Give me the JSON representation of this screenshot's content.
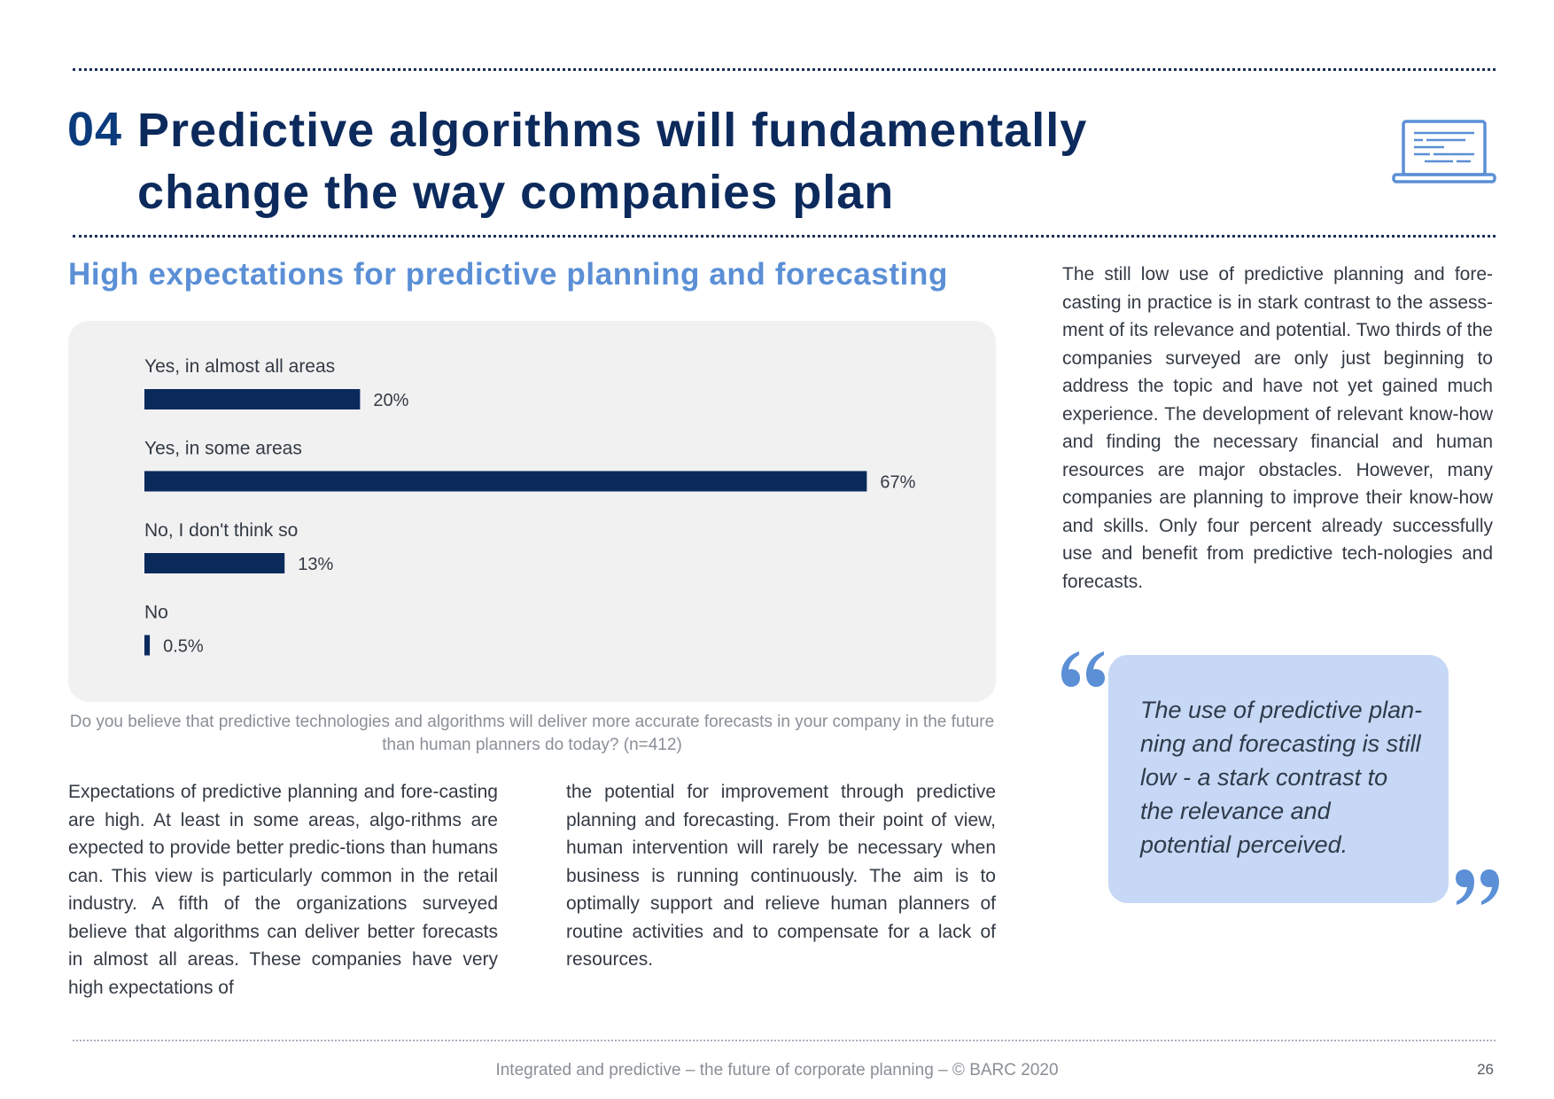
{
  "header": {
    "section_number": "04",
    "title": "Predictive algorithms will fundamentally change the way companies plan",
    "icon": "laptop-icon"
  },
  "subheading": "High expectations for predictive planning and forecasting",
  "chart_data": {
    "type": "bar",
    "orientation": "horizontal",
    "categories": [
      "Yes, in almost all areas",
      "Yes, in some areas",
      "No, I don't think so",
      "No"
    ],
    "values": [
      20,
      67,
      13,
      0.5
    ],
    "value_labels": [
      "20%",
      "67%",
      "13%",
      "0.5%"
    ],
    "unit": "%",
    "xlim": [
      0,
      100
    ],
    "bar_color": "#0b2a5c",
    "grid": false,
    "caption": "Do you believe that predictive technologies and algorithms will deliver more accurate forecasts in your company in the future than human planners do today? (n=412)"
  },
  "body": {
    "left_column": "Expectations of predictive planning and fore-casting are high. At least in some areas, algo-rithms are expected to provide better predic-tions than humans can. This view is particularly common in the retail industry. A fifth of the organizations surveyed believe that algorithms can deliver better forecasts in almost all areas. These companies have very high expectations of",
    "middle_column": "the potential for improvement through predictive planning and forecasting. From their point of view, human intervention will rarely be necessary when business is running continuously. The aim is to optimally support and relieve human planners of routine activities and to compensate for a lack of resources.",
    "right_column": "The still low use of predictive planning and fore-casting in practice is in stark contrast to the assess-ment of its relevance and potential. Two thirds of the companies surveyed are only just beginning to address the topic and have not yet gained much experience. The development of relevant know-how and finding the necessary financial and human resources are major obstacles. However, many companies are planning to improve their know-how and skills. Only four percent already successfully use and benefit from predictive tech-nologies and forecasts."
  },
  "quote": {
    "text": "The use of predictive plan-ning and forecasting is still low - a stark contrast to the relevance and potential perceived.",
    "open_icon": "open-quote-icon",
    "close_icon": "close-quote-icon",
    "accent_color": "#5b8fd6"
  },
  "footer": {
    "text": "Integrated and predictive – the future of corporate planning  – © BARC 2020",
    "page_number": "26"
  }
}
